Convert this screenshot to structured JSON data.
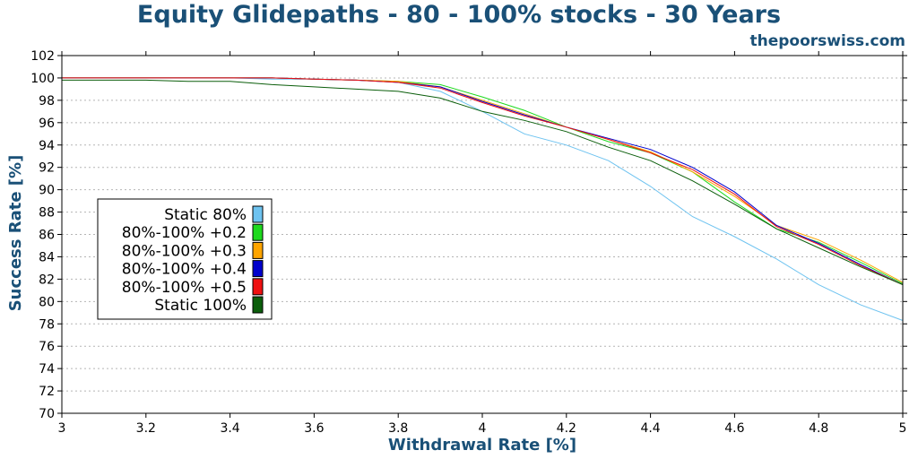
{
  "chart_data": {
    "type": "line",
    "title": "Equity Glidepaths - 80 - 100% stocks - 30 Years",
    "source_label": "thepoorswiss.com",
    "xlabel": "Withdrawal Rate [%]",
    "ylabel": "Success Rate [%]",
    "xlim": [
      3,
      5
    ],
    "ylim": [
      70,
      102
    ],
    "xticks": [
      "3",
      "3.2",
      "3.4",
      "3.6",
      "3.8",
      "4",
      "4.2",
      "4.4",
      "4.6",
      "4.8",
      "5"
    ],
    "yticks": [
      "70",
      "72",
      "74",
      "76",
      "78",
      "80",
      "82",
      "84",
      "86",
      "88",
      "90",
      "92",
      "94",
      "96",
      "98",
      "100",
      "102"
    ],
    "grid": "horizontal dotted",
    "legend_placement": "center-left",
    "x": [
      3.0,
      3.1,
      3.2,
      3.3,
      3.4,
      3.5,
      3.6,
      3.7,
      3.8,
      3.9,
      4.0,
      4.1,
      4.2,
      4.3,
      4.4,
      4.5,
      4.6,
      4.7,
      4.8,
      4.9,
      5.0
    ],
    "series": [
      {
        "name": "Static 80%",
        "color": "#6ec3f0",
        "values": [
          100,
          100,
          100,
          100,
          100,
          99.9,
          99.9,
          99.8,
          99.6,
          98.8,
          97.0,
          95.0,
          94.0,
          92.6,
          90.3,
          87.6,
          85.8,
          83.8,
          81.5,
          79.7,
          78.3
        ]
      },
      {
        "name": "80%-100% +0.2",
        "color": "#1ed91e",
        "values": [
          100,
          100,
          100,
          100,
          100,
          100,
          99.9,
          99.8,
          99.7,
          99.4,
          98.3,
          97.1,
          95.6,
          94.3,
          93.3,
          91.6,
          88.9,
          86.5,
          85.3,
          83.5,
          81.6
        ]
      },
      {
        "name": "80%-100% +0.3",
        "color": "#ffa500",
        "values": [
          100,
          100,
          100,
          100,
          100,
          100,
          99.9,
          99.8,
          99.7,
          99.2,
          98.0,
          96.8,
          95.6,
          94.5,
          93.4,
          91.6,
          89.4,
          86.8,
          85.5,
          83.7,
          81.7
        ]
      },
      {
        "name": "80%-100% +0.4",
        "color": "#0000cc",
        "values": [
          100,
          100,
          100,
          100,
          100,
          100,
          99.9,
          99.8,
          99.6,
          99.2,
          97.9,
          96.7,
          95.6,
          94.6,
          93.6,
          92.0,
          89.8,
          86.8,
          85.2,
          83.3,
          81.5
        ]
      },
      {
        "name": "80%-100% +0.5",
        "color": "#ee1111",
        "values": [
          100,
          100,
          100,
          100,
          100,
          100,
          99.9,
          99.8,
          99.6,
          99.1,
          97.8,
          96.6,
          95.6,
          94.5,
          93.3,
          91.8,
          89.6,
          86.7,
          85.1,
          83.2,
          81.5
        ]
      },
      {
        "name": "Static 100%",
        "color": "#0b5e0b",
        "values": [
          99.8,
          99.8,
          99.8,
          99.7,
          99.7,
          99.4,
          99.2,
          99.0,
          98.8,
          98.2,
          97.0,
          96.2,
          95.2,
          93.8,
          92.6,
          90.8,
          88.7,
          86.5,
          84.8,
          83.1,
          81.5
        ]
      }
    ]
  }
}
